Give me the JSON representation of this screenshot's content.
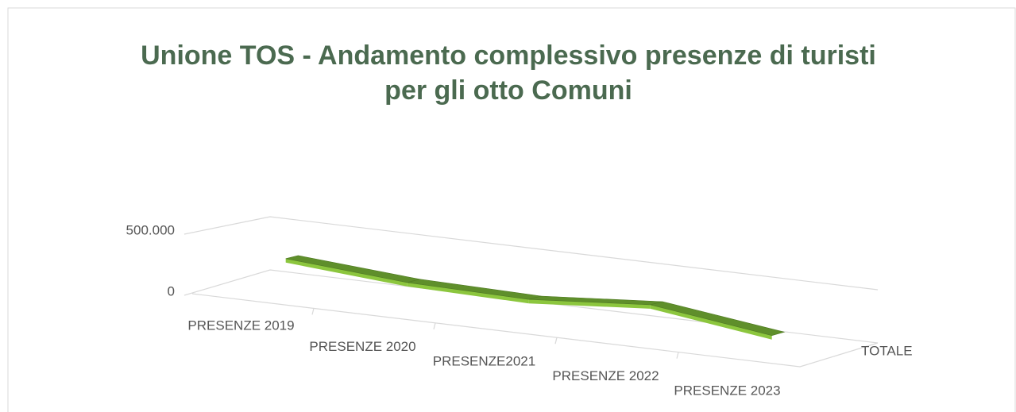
{
  "chart_data": {
    "type": "line3d",
    "title": "Unione TOS - Andamento complessivo presenze di turisti per gli otto Comuni",
    "categories": [
      "PRESENZE 2019",
      "PRESENZE 2020",
      "PRESENZE2021",
      "PRESENZE 2022",
      "PRESENZE 2023"
    ],
    "series": [
      {
        "name": "TOTALE",
        "color": "#5f8f2b",
        "values": [
          280000,
          200000,
          180000,
          260000,
          120000
        ]
      }
    ],
    "ylim": [
      0,
      500000
    ],
    "yticks": [
      0,
      {
        "value": 500000,
        "label": "500.000"
      }
    ],
    "grid": true
  }
}
